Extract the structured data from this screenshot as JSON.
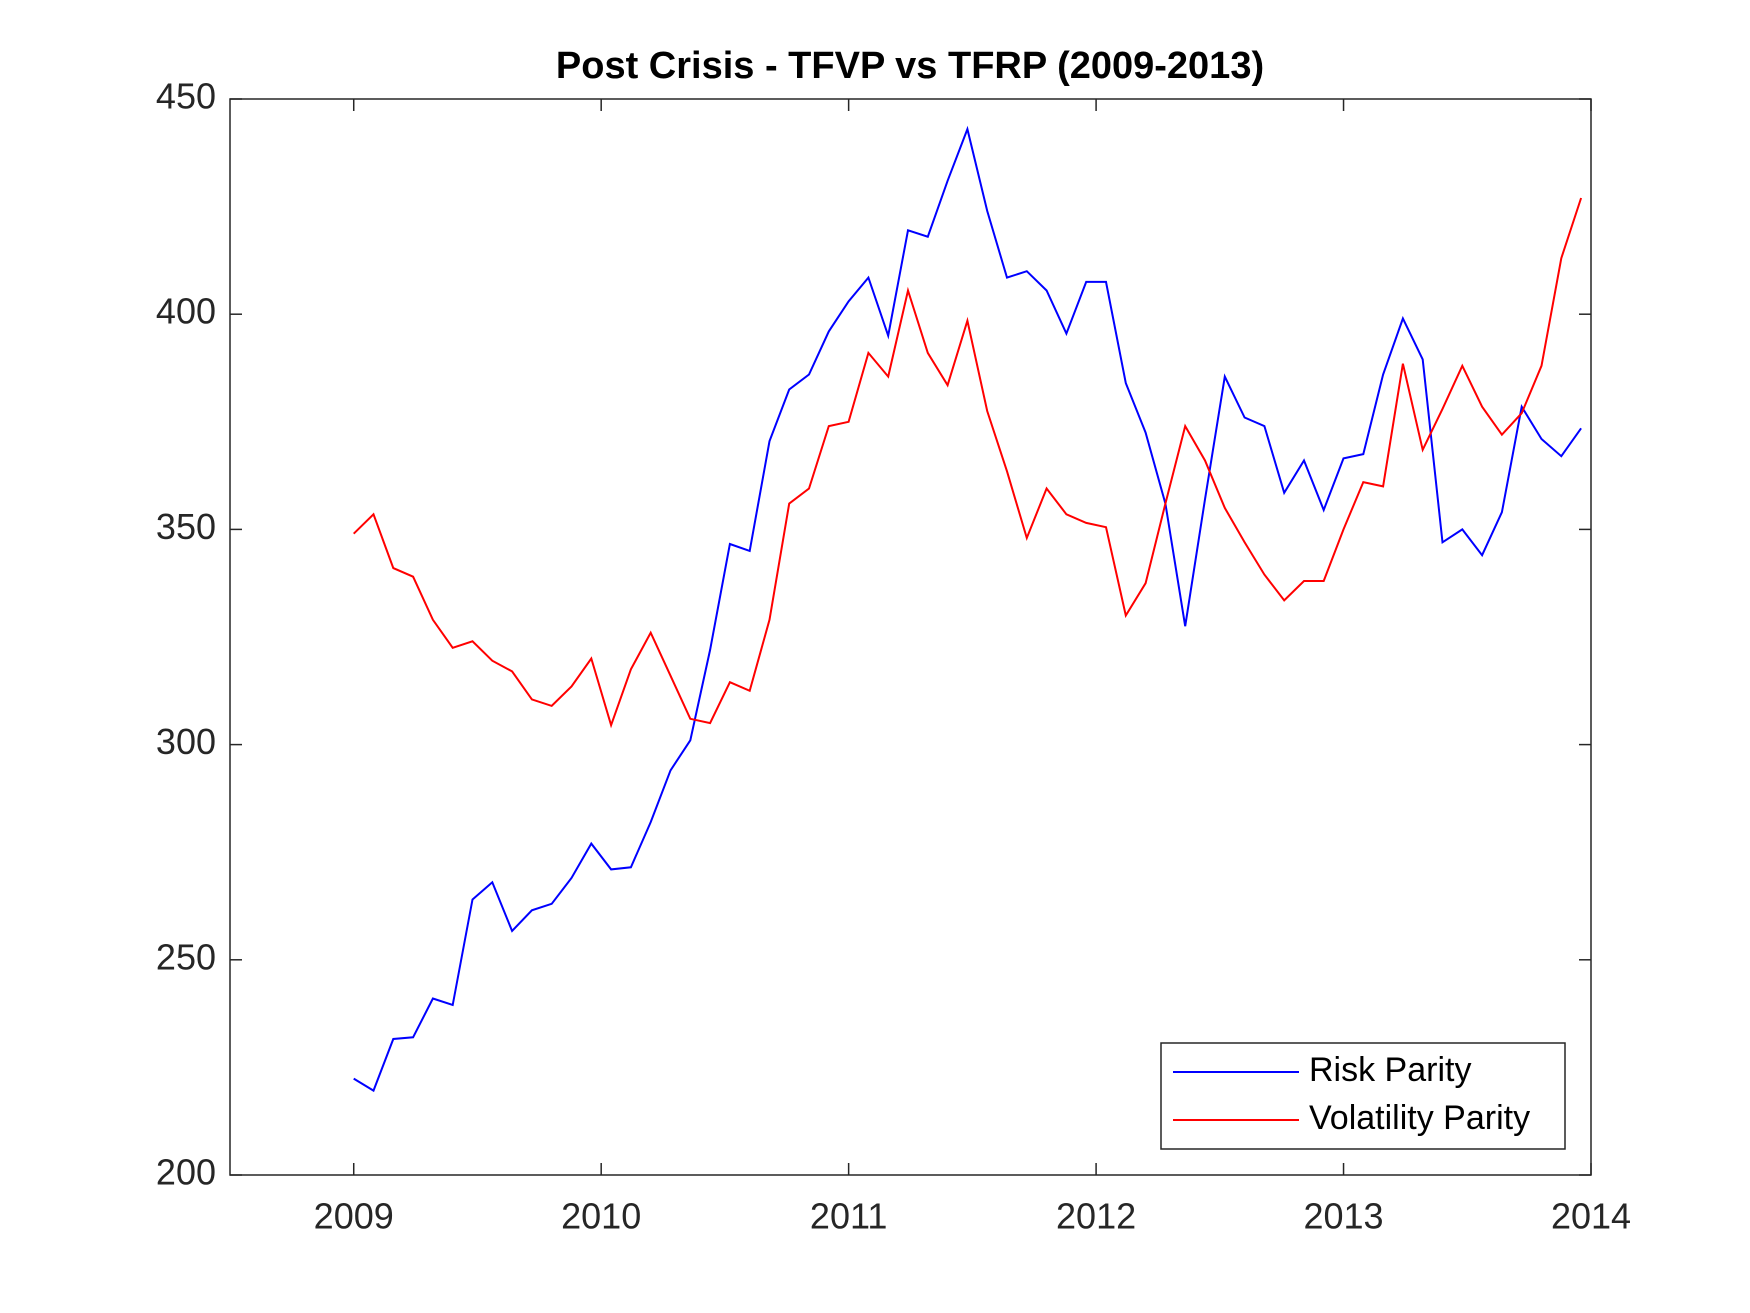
{
  "chart_data": {
    "type": "line",
    "title": "Post Crisis - TFVP vs TFRP (2009-2013)",
    "x": [
      2009,
      2009.08,
      2009.16,
      2009.24,
      2009.32,
      2009.4,
      2009.48,
      2009.56,
      2009.64,
      2009.72,
      2009.8,
      2009.88,
      2009.96,
      2010.04,
      2010.12,
      2010.2,
      2010.28,
      2010.36,
      2010.44,
      2010.52,
      2010.6,
      2010.68,
      2010.76,
      2010.84,
      2010.92,
      2011,
      2011.08,
      2011.16,
      2011.24,
      2011.32,
      2011.4,
      2011.48,
      2011.56,
      2011.64,
      2011.72,
      2011.8,
      2011.88,
      2011.96,
      2012.04,
      2012.12,
      2012.2,
      2012.28,
      2012.36,
      2012.44,
      2012.52,
      2012.6,
      2012.68,
      2012.76,
      2012.84,
      2012.92,
      2013,
      2013.08,
      2013.16,
      2013.24,
      2013.32,
      2013.4,
      2013.48,
      2013.56,
      2013.64,
      2013.72,
      2013.8,
      2013.88,
      2013.96
    ],
    "series": [
      {
        "name": "Risk Parity",
        "color": "#0000ff",
        "values": [
          222.4,
          219.6,
          231.6,
          232,
          241,
          239.5,
          264,
          268,
          256.7,
          261.5,
          263,
          269,
          277,
          271,
          271.5,
          282,
          294,
          301,
          322,
          346.6,
          345,
          370.5,
          382.5,
          386,
          396,
          403,
          408.5,
          395,
          419.5,
          418,
          431,
          443,
          424,
          408.5,
          410,
          405.5,
          395.5,
          407.5,
          407.5,
          384,
          372.5,
          356,
          327.5,
          357,
          385.5,
          376,
          374,
          358.5,
          366,
          354.5,
          366.5,
          367.5,
          386,
          399,
          389.5,
          347,
          350,
          344,
          354,
          378.5,
          371,
          367,
          373.5
        ]
      },
      {
        "name": "Volatility Parity",
        "color": "#ff0000",
        "values": [
          349,
          353.5,
          341,
          339,
          329,
          322.5,
          324,
          319.5,
          317,
          310.5,
          309,
          313.5,
          320,
          304.5,
          317.5,
          326,
          316,
          306,
          305,
          314.5,
          312.5,
          329,
          356,
          359.5,
          374,
          375,
          391,
          385.5,
          405.5,
          391,
          383.5,
          398.5,
          377.5,
          363.5,
          348,
          359.5,
          353.5,
          351.5,
          350.5,
          330,
          337.5,
          356,
          374,
          366,
          355,
          347,
          339.5,
          333.5,
          338,
          338,
          350,
          361,
          360,
          388.5,
          368.5,
          378,
          388,
          378.5,
          372,
          377,
          388,
          413,
          427
        ]
      }
    ],
    "xlim": [
      2008.5,
      2014
    ],
    "xticks": [
      2009,
      2010,
      2011,
      2012,
      2013,
      2014
    ],
    "ylim": [
      200,
      450
    ],
    "yticks": [
      200,
      250,
      300,
      350,
      400,
      450
    ],
    "grid": false,
    "legend": "lower right"
  }
}
